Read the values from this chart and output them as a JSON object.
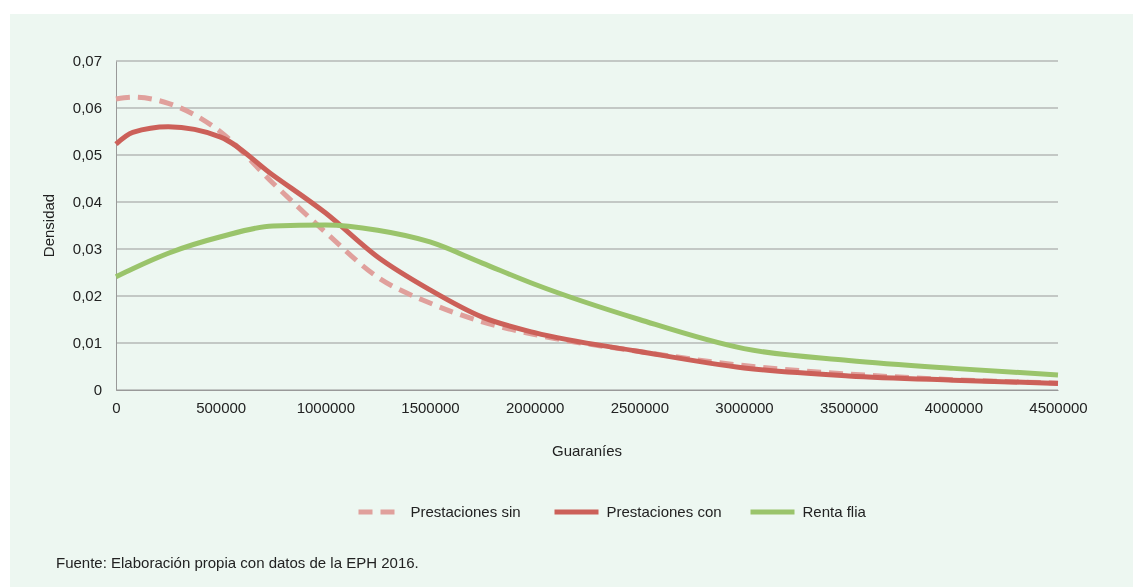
{
  "chart_data": {
    "type": "line",
    "xlabel": "Guaraníes",
    "ylabel": "Densidad",
    "x": [
      0,
      80000,
      250000,
      500000,
      750000,
      1000000,
      1250000,
      1500000,
      1750000,
      2000000,
      2500000,
      3000000,
      3500000,
      4000000,
      4500000
    ],
    "xlim": [
      0,
      4500000
    ],
    "xticks": [
      0,
      500000,
      1000000,
      1500000,
      2000000,
      2500000,
      3000000,
      3500000,
      4000000,
      4500000
    ],
    "ylim": [
      0,
      0.07
    ],
    "yticks": [
      {
        "value": 0,
        "label": "0"
      },
      {
        "value": 0.01,
        "label": "0,01"
      },
      {
        "value": 0.02,
        "label": "0,02"
      },
      {
        "value": 0.03,
        "label": "0,03"
      },
      {
        "value": 0.04,
        "label": "0,04"
      },
      {
        "value": 0.05,
        "label": "0,05"
      },
      {
        "value": 0.06,
        "label": "0,06"
      },
      {
        "value": 0.07,
        "label": "0,07"
      }
    ],
    "grid": "y",
    "legend": "bottom",
    "series": [
      {
        "name": "Prestaciones sin",
        "color": "#e0a09c",
        "line_style": "dashed",
        "values": [
          0.0619,
          0.0623,
          0.061,
          0.0549,
          0.044,
          0.0336,
          0.024,
          0.0185,
          0.0145,
          0.0118,
          0.0082,
          0.0052,
          0.0034,
          0.0022,
          0.0015
        ]
      },
      {
        "name": "Prestaciones con",
        "color": "#cc6059",
        "line_style": "solid",
        "values": [
          0.0523,
          0.0548,
          0.056,
          0.0538,
          0.0457,
          0.0377,
          0.0283,
          0.0213,
          0.0155,
          0.0122,
          0.0082,
          0.0047,
          0.003,
          0.0021,
          0.0014
        ]
      },
      {
        "name": "Renta flia",
        "color": "#9ac46b",
        "line_style": "solid",
        "values": [
          0.0241,
          0.0258,
          0.0291,
          0.0326,
          0.0349,
          0.0351,
          0.034,
          0.0315,
          0.027,
          0.0225,
          0.015,
          0.0088,
          0.0063,
          0.0046,
          0.0032
        ]
      }
    ],
    "annotations": [
      "Fuente: Elaboración propia con datos de la EPH 2016."
    ]
  }
}
